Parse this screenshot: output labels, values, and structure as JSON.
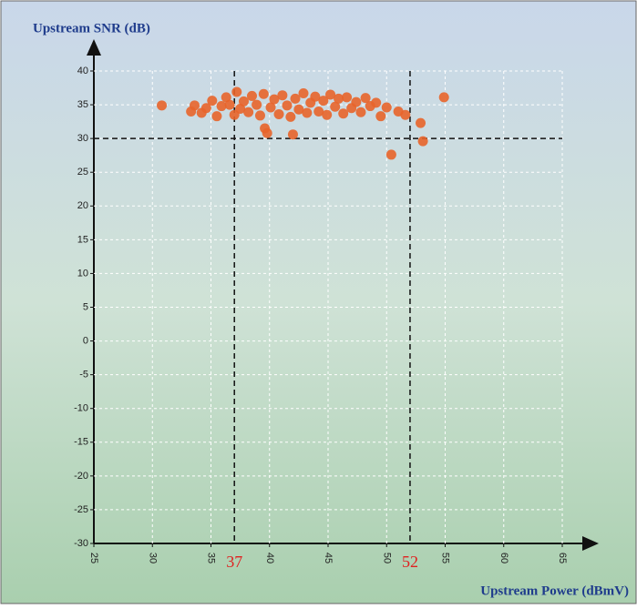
{
  "chart_data": {
    "type": "scatter",
    "y_label": "Upstream SNR (dB)",
    "x_label": "Upstream Power (dBmV)",
    "color": "#e8642a",
    "x": [
      30.8,
      33.3,
      33.6,
      34.2,
      34.6,
      35.1,
      35.5,
      35.9,
      36.3,
      36.6,
      37.0,
      37.2,
      37.5,
      37.8,
      38.2,
      38.5,
      38.9,
      39.2,
      39.5,
      39.6,
      39.8,
      40.1,
      40.4,
      40.8,
      41.1,
      41.5,
      41.8,
      42.0,
      42.2,
      42.5,
      42.9,
      43.2,
      43.5,
      43.9,
      44.2,
      44.6,
      44.9,
      45.2,
      45.6,
      45.9,
      46.3,
      46.6,
      47.0,
      47.4,
      47.8,
      48.2,
      48.6,
      49.1,
      49.5,
      50.0,
      50.4,
      51.0,
      51.6,
      52.9,
      53.1,
      54.9
    ],
    "values": [
      34.9,
      34.0,
      34.9,
      33.8,
      34.5,
      35.6,
      33.3,
      34.8,
      36.1,
      35.0,
      33.5,
      36.9,
      34.4,
      35.5,
      33.9,
      36.3,
      35.0,
      33.4,
      36.6,
      31.5,
      30.8,
      34.6,
      35.8,
      33.6,
      36.4,
      34.9,
      33.2,
      30.6,
      35.9,
      34.3,
      36.7,
      33.8,
      35.3,
      36.2,
      34.0,
      35.6,
      33.5,
      36.5,
      34.7,
      35.9,
      33.7,
      36.1,
      34.5,
      35.4,
      33.9,
      36.0,
      34.8,
      35.3,
      33.3,
      34.6,
      27.6,
      34.0,
      33.5,
      32.3,
      29.6,
      36.1
    ],
    "xlim": [
      25,
      65
    ],
    "xticks": [
      25,
      30,
      35,
      40,
      45,
      50,
      55,
      60,
      65
    ],
    "ylim": [
      -30,
      40
    ],
    "yticks": [
      -30,
      -25,
      -20,
      -15,
      -10,
      -5,
      0,
      5,
      10,
      15,
      20,
      25,
      30,
      35,
      40
    ],
    "grid": true,
    "vlines": [
      37,
      52
    ],
    "hlines": [
      30
    ]
  }
}
